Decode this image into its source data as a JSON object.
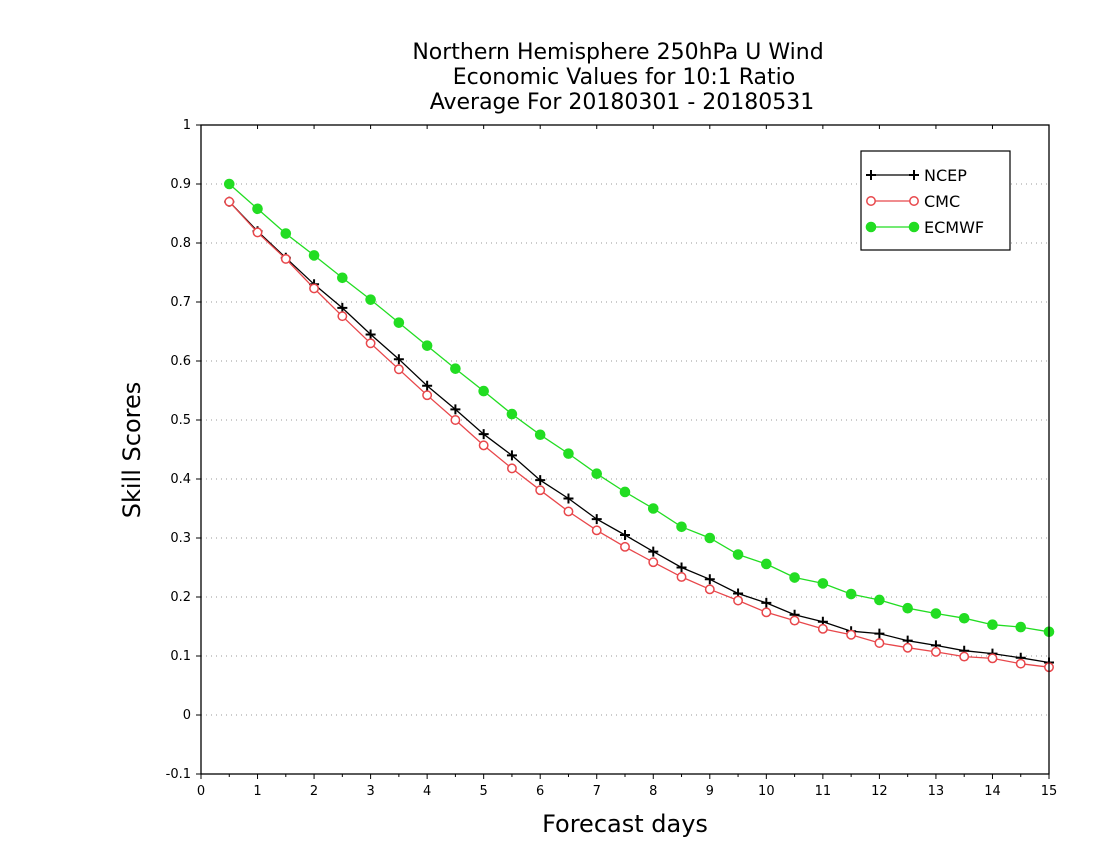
{
  "chart_data": {
    "type": "line",
    "title": [
      "Northern Hemisphere 250hPa U Wind",
      "Economic Values for 10:1 Ratio",
      "Average For 20180301 - 20180531"
    ],
    "xlabel": "Forecast days",
    "ylabel": "Skill Scores",
    "xlim": [
      0,
      15
    ],
    "ylim": [
      -0.1,
      1
    ],
    "xticks": [
      "0",
      "1",
      "2",
      "3",
      "4",
      "5",
      "6",
      "7",
      "8",
      "9",
      "10",
      "11",
      "12",
      "13",
      "14",
      "15"
    ],
    "yticks": [
      "-0.1",
      "0",
      "0.1",
      "0.2",
      "0.3",
      "0.4",
      "0.5",
      "0.6",
      "0.7",
      "0.8",
      "0.9",
      "1"
    ],
    "grid": true,
    "legend_position": "top-right",
    "x": [
      0.5,
      1,
      1.5,
      2,
      2.5,
      3,
      3.5,
      4,
      4.5,
      5,
      5.5,
      6,
      6.5,
      7,
      7.5,
      8,
      8.5,
      9,
      9.5,
      10,
      10.5,
      11,
      11.5,
      12,
      12.5,
      13,
      13.5,
      14,
      14.5,
      15
    ],
    "series": [
      {
        "name": "NCEP",
        "color": "#000000",
        "marker": "plus",
        "values": [
          0.87,
          0.82,
          0.775,
          0.73,
          0.69,
          0.645,
          0.603,
          0.558,
          0.518,
          0.476,
          0.44,
          0.398,
          0.367,
          0.332,
          0.305,
          0.277,
          0.25,
          0.23,
          0.206,
          0.19,
          0.17,
          0.158,
          0.142,
          0.138,
          0.126,
          0.118,
          0.109,
          0.104,
          0.097,
          0.089
        ]
      },
      {
        "name": "CMC",
        "color": "#e8474b",
        "marker": "open-circle",
        "values": [
          0.87,
          0.818,
          0.773,
          0.723,
          0.676,
          0.63,
          0.586,
          0.542,
          0.5,
          0.457,
          0.418,
          0.381,
          0.345,
          0.313,
          0.285,
          0.259,
          0.234,
          0.213,
          0.194,
          0.174,
          0.16,
          0.146,
          0.136,
          0.122,
          0.114,
          0.107,
          0.099,
          0.096,
          0.087,
          0.081
        ]
      },
      {
        "name": "ECMWF",
        "color": "#22dd22",
        "marker": "filled-circle",
        "values": [
          0.9,
          0.858,
          0.816,
          0.779,
          0.741,
          0.704,
          0.665,
          0.626,
          0.587,
          0.549,
          0.51,
          0.475,
          0.443,
          0.409,
          0.378,
          0.35,
          0.319,
          0.3,
          0.272,
          0.256,
          0.233,
          0.223,
          0.205,
          0.195,
          0.181,
          0.172,
          0.164,
          0.153,
          0.149,
          0.141
        ]
      }
    ]
  }
}
